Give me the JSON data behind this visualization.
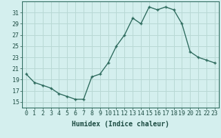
{
  "x": [
    0,
    1,
    2,
    3,
    4,
    5,
    6,
    7,
    8,
    9,
    10,
    11,
    12,
    13,
    14,
    15,
    16,
    17,
    18,
    19,
    20,
    21,
    22,
    23
  ],
  "y": [
    20,
    18.5,
    18,
    17.5,
    16.5,
    16,
    15.5,
    15.5,
    19.5,
    20,
    22,
    25,
    27,
    30,
    29,
    32,
    31.5,
    32,
    31.5,
    29,
    24,
    23,
    22.5,
    22
  ],
  "line_color": "#2e6b5e",
  "bg_color": "#d4efee",
  "grid_color": "#b8d8d4",
  "xlabel": "Humidex (Indice chaleur)",
  "xlabel_fontsize": 7,
  "tick_fontsize": 6,
  "ylim": [
    14,
    33
  ],
  "xlim": [
    -0.5,
    23.5
  ],
  "yticks": [
    15,
    17,
    19,
    21,
    23,
    25,
    27,
    29,
    31
  ],
  "xticks": [
    0,
    1,
    2,
    3,
    4,
    5,
    6,
    7,
    8,
    9,
    10,
    11,
    12,
    13,
    14,
    15,
    16,
    17,
    18,
    19,
    20,
    21,
    22,
    23
  ]
}
